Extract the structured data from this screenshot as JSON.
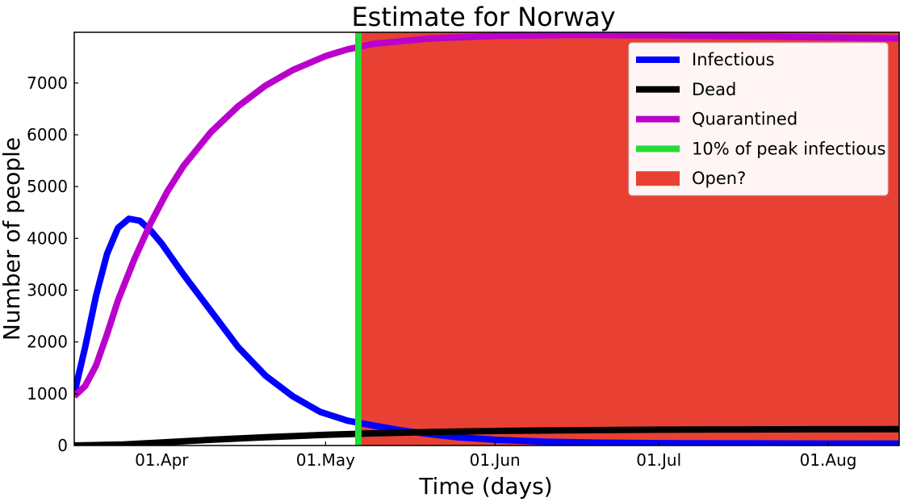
{
  "chart_data": {
    "type": "line",
    "title": "Estimate for Norway",
    "xlabel": "Time (days)",
    "ylabel": "Number of people",
    "x_unit": "date",
    "xlim": [
      "2020-03-16",
      "2020-08-14"
    ],
    "ylim": [
      0,
      7980
    ],
    "yticks": [
      0,
      1000,
      2000,
      3000,
      4000,
      5000,
      6000,
      7000
    ],
    "xticks": [
      {
        "date": "2020-04-01",
        "label": "01.Apr"
      },
      {
        "date": "2020-05-01",
        "label": "01.May"
      },
      {
        "date": "2020-06-01",
        "label": "01.Jun"
      },
      {
        "date": "2020-07-01",
        "label": "01.Jul"
      },
      {
        "date": "2020-08-01",
        "label": "01.Aug"
      }
    ],
    "grid": false,
    "legend_position": "top-right",
    "series": [
      {
        "name": "Infectious",
        "color": "#0000ff",
        "points": [
          [
            "2020-03-16",
            1000
          ],
          [
            "2020-03-18",
            1900
          ],
          [
            "2020-03-20",
            2900
          ],
          [
            "2020-03-22",
            3700
          ],
          [
            "2020-03-24",
            4200
          ],
          [
            "2020-03-26",
            4380
          ],
          [
            "2020-03-28",
            4340
          ],
          [
            "2020-03-30",
            4150
          ],
          [
            "2020-04-01",
            3900
          ],
          [
            "2020-04-05",
            3300
          ],
          [
            "2020-04-10",
            2600
          ],
          [
            "2020-04-15",
            1900
          ],
          [
            "2020-04-20",
            1350
          ],
          [
            "2020-04-25",
            950
          ],
          [
            "2020-04-30",
            650
          ],
          [
            "2020-05-05",
            480
          ],
          [
            "2020-05-10",
            380
          ],
          [
            "2020-05-15",
            290
          ],
          [
            "2020-05-20",
            220
          ],
          [
            "2020-05-25",
            160
          ],
          [
            "2020-06-01",
            110
          ],
          [
            "2020-06-10",
            75
          ],
          [
            "2020-06-20",
            55
          ],
          [
            "2020-07-01",
            45
          ],
          [
            "2020-07-15",
            40
          ],
          [
            "2020-08-01",
            38
          ],
          [
            "2020-08-14",
            37
          ]
        ]
      },
      {
        "name": "Dead",
        "color": "#000000",
        "points": [
          [
            "2020-03-16",
            0
          ],
          [
            "2020-03-25",
            20
          ],
          [
            "2020-04-01",
            60
          ],
          [
            "2020-04-10",
            110
          ],
          [
            "2020-04-20",
            160
          ],
          [
            "2020-05-01",
            205
          ],
          [
            "2020-05-10",
            235
          ],
          [
            "2020-05-20",
            260
          ],
          [
            "2020-06-01",
            280
          ],
          [
            "2020-06-15",
            295
          ],
          [
            "2020-07-01",
            305
          ],
          [
            "2020-07-15",
            310
          ],
          [
            "2020-08-01",
            314
          ],
          [
            "2020-08-14",
            316
          ]
        ]
      },
      {
        "name": "Quarantined",
        "color": "#bb00cc",
        "points": [
          [
            "2020-03-16",
            950
          ],
          [
            "2020-03-18",
            1150
          ],
          [
            "2020-03-20",
            1550
          ],
          [
            "2020-03-22",
            2150
          ],
          [
            "2020-03-24",
            2800
          ],
          [
            "2020-03-27",
            3600
          ],
          [
            "2020-03-30",
            4300
          ],
          [
            "2020-04-02",
            4900
          ],
          [
            "2020-04-05",
            5400
          ],
          [
            "2020-04-10",
            6050
          ],
          [
            "2020-04-15",
            6550
          ],
          [
            "2020-04-20",
            6950
          ],
          [
            "2020-04-25",
            7250
          ],
          [
            "2020-05-01",
            7520
          ],
          [
            "2020-05-05",
            7650
          ],
          [
            "2020-05-10",
            7760
          ],
          [
            "2020-05-20",
            7860
          ],
          [
            "2020-06-01",
            7910
          ],
          [
            "2020-06-15",
            7930
          ],
          [
            "2020-07-01",
            7920
          ],
          [
            "2020-07-15",
            7905
          ],
          [
            "2020-08-01",
            7880
          ],
          [
            "2020-08-14",
            7860
          ]
        ]
      }
    ],
    "vline": {
      "name": "10% of peak infectious",
      "color": "#22dd33",
      "date": "2020-05-07"
    },
    "shaded_region": {
      "name": "Open?",
      "color": "#e84133",
      "from": "2020-05-07",
      "to": "2020-08-14"
    }
  }
}
